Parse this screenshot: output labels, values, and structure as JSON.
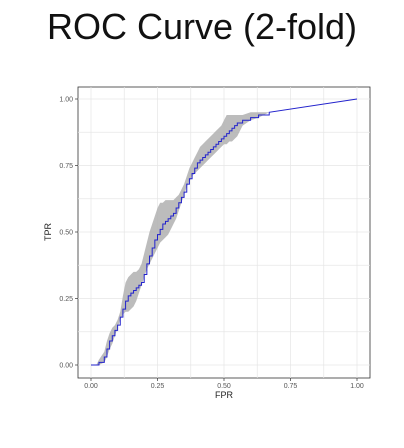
{
  "chart_data": {
    "type": "line",
    "title": "ROC Curve (2-fold)",
    "xlabel": "FPR",
    "ylabel": "TPR",
    "xlim": [
      0,
      1
    ],
    "ylim": [
      0,
      1
    ],
    "x_ticks": [
      0,
      0.25,
      0.5,
      0.75,
      1
    ],
    "y_ticks": [
      0,
      0.25,
      0.5,
      0.75,
      1
    ],
    "x_tick_labels": [
      "0.00",
      "0.25",
      "0.50",
      "0.75",
      "1.00"
    ],
    "y_tick_labels": [
      "0.00",
      "0.25",
      "0.50",
      "0.75",
      "1.00"
    ],
    "grid": true,
    "colors": {
      "curve": "#2222cc",
      "band": "#b0b0b0"
    },
    "series": [
      {
        "x": [
          0.0,
          0.02,
          0.03,
          0.05,
          0.06,
          0.07,
          0.08,
          0.09,
          0.1,
          0.11,
          0.12,
          0.13,
          0.14,
          0.15,
          0.16,
          0.17,
          0.18,
          0.19,
          0.2,
          0.21,
          0.22,
          0.23,
          0.24,
          0.25,
          0.26,
          0.27,
          0.28,
          0.29,
          0.3,
          0.31,
          0.32,
          0.33,
          0.34,
          0.35,
          0.36,
          0.37,
          0.38,
          0.39,
          0.4,
          0.41,
          0.42,
          0.43,
          0.44,
          0.45,
          0.46,
          0.47,
          0.48,
          0.49,
          0.5,
          0.51,
          0.52,
          0.53,
          0.54,
          0.55,
          0.56,
          0.57,
          0.6,
          0.63,
          0.67,
          1.0
        ],
        "y": [
          0.0,
          0.0,
          0.01,
          0.03,
          0.06,
          0.09,
          0.11,
          0.13,
          0.15,
          0.18,
          0.21,
          0.24,
          0.26,
          0.27,
          0.28,
          0.29,
          0.3,
          0.31,
          0.34,
          0.38,
          0.41,
          0.44,
          0.47,
          0.49,
          0.51,
          0.53,
          0.54,
          0.55,
          0.56,
          0.57,
          0.59,
          0.61,
          0.63,
          0.65,
          0.68,
          0.7,
          0.72,
          0.74,
          0.76,
          0.77,
          0.78,
          0.79,
          0.8,
          0.81,
          0.82,
          0.83,
          0.84,
          0.85,
          0.86,
          0.87,
          0.88,
          0.89,
          0.9,
          0.91,
          0.91,
          0.92,
          0.93,
          0.94,
          0.95,
          1.0
        ],
        "y_lower": [
          0.0,
          0.0,
          0.0,
          0.01,
          0.03,
          0.06,
          0.08,
          0.11,
          0.14,
          0.17,
          0.19,
          0.2,
          0.2,
          0.21,
          0.22,
          0.24,
          0.27,
          0.3,
          0.33,
          0.36,
          0.38,
          0.4,
          0.42,
          0.44,
          0.46,
          0.47,
          0.48,
          0.49,
          0.51,
          0.53,
          0.55,
          0.58,
          0.61,
          0.64,
          0.67,
          0.69,
          0.71,
          0.72,
          0.73,
          0.74,
          0.75,
          0.76,
          0.77,
          0.78,
          0.79,
          0.8,
          0.81,
          0.82,
          0.83,
          0.83,
          0.84,
          0.84,
          0.85,
          0.86,
          0.88,
          0.9,
          0.92,
          0.93,
          0.95,
          1.0
        ],
        "y_upper": [
          0.0,
          0.0,
          0.02,
          0.05,
          0.09,
          0.12,
          0.14,
          0.15,
          0.17,
          0.2,
          0.26,
          0.31,
          0.33,
          0.34,
          0.35,
          0.35,
          0.36,
          0.38,
          0.42,
          0.46,
          0.5,
          0.53,
          0.56,
          0.59,
          0.61,
          0.61,
          0.62,
          0.62,
          0.62,
          0.62,
          0.63,
          0.64,
          0.66,
          0.68,
          0.71,
          0.74,
          0.76,
          0.78,
          0.8,
          0.82,
          0.83,
          0.84,
          0.85,
          0.86,
          0.87,
          0.88,
          0.89,
          0.9,
          0.92,
          0.94,
          0.94,
          0.94,
          0.94,
          0.94,
          0.94,
          0.94,
          0.95,
          0.95,
          0.95,
          1.0
        ]
      }
    ]
  }
}
